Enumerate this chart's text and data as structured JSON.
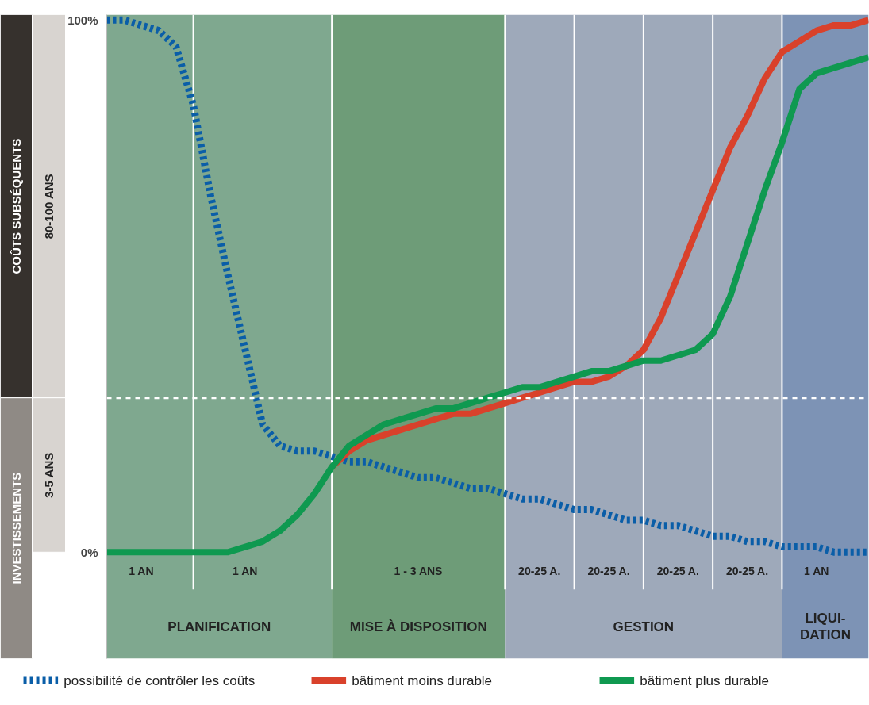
{
  "chart_data": {
    "type": "line",
    "categories": [
      null,
      null,
      "1 AN",
      null,
      null,
      null,
      null,
      null,
      "1 AN",
      null,
      null,
      null,
      null,
      null,
      null,
      null,
      null,
      null,
      "1 - 3 ANS",
      null,
      null,
      null,
      null,
      null,
      null,
      "20-25 A.",
      null,
      null,
      null,
      "20-25 A.",
      null,
      null,
      null,
      "20-25 A.",
      null,
      null,
      null,
      "20-25 A.",
      null,
      null,
      null,
      "1 AN",
      null,
      null,
      null
    ],
    "ylim": [
      -20,
      101
    ],
    "yticks": [
      {
        "value": 0,
        "label": "0%"
      },
      {
        "value": 100,
        "label": "100%"
      }
    ],
    "tick_labels": "y",
    "legend": "bottom",
    "grid": "x",
    "series": [
      {
        "name": "possibilité de contrôler les coûts",
        "color": "#0a5ea8",
        "line_style": "dotted",
        "values": [
          100,
          100,
          99,
          98,
          95,
          84,
          67,
          52,
          38,
          24,
          20,
          19,
          19,
          18,
          17,
          17,
          16,
          15,
          14,
          14,
          13,
          12,
          12,
          11,
          10,
          10,
          9,
          8,
          8,
          7,
          6,
          6,
          5,
          5,
          4,
          3,
          3,
          2,
          2,
          1,
          1,
          1,
          0,
          0,
          0
        ]
      },
      {
        "name": "bâtiment moins durable",
        "color": "#d9412b",
        "line_style": "solid",
        "values": [
          null,
          null,
          null,
          null,
          null,
          null,
          null,
          null,
          null,
          null,
          null,
          null,
          null,
          16,
          19,
          21,
          22,
          23,
          24,
          25,
          26,
          26,
          27,
          28,
          29,
          30,
          31,
          32,
          32,
          33,
          35,
          38,
          44,
          52,
          60,
          68,
          76,
          82,
          89,
          94,
          96,
          98,
          99,
          99,
          100
        ]
      },
      {
        "name": "bâtiment plus durable",
        "color": "#0f9950",
        "line_style": "solid",
        "values": [
          0,
          0,
          0,
          0,
          0,
          0,
          0,
          0,
          1,
          2,
          4,
          7,
          11,
          16,
          20,
          22,
          24,
          25,
          26,
          27,
          27,
          28,
          29,
          30,
          31,
          31,
          32,
          33,
          34,
          34,
          35,
          36,
          36,
          37,
          38,
          41,
          48,
          58,
          68,
          77,
          87,
          90,
          91,
          92,
          93
        ]
      }
    ],
    "ref_lines": [
      {
        "axis": "y",
        "value": 29,
        "color": "#ffffff",
        "line_style": "dashed"
      }
    ],
    "annotations": [
      "PLANIFICATION",
      "MISE À DISPOSITION",
      "GESTION",
      "LIQUI-\nDATION",
      "COÛTS SUBSÉQUENTS",
      "INVESTISSEMENTS",
      "80-100 ANS",
      "3-5 ANS"
    ]
  }
}
